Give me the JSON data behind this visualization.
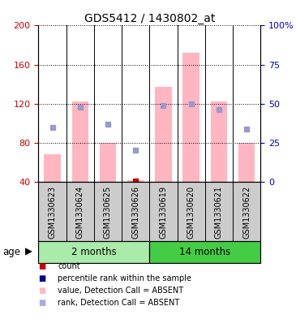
{
  "title": "GDS5412 / 1430802_at",
  "samples": [
    "GSM1330623",
    "GSM1330624",
    "GSM1330625",
    "GSM1330626",
    "GSM1330619",
    "GSM1330620",
    "GSM1330621",
    "GSM1330622"
  ],
  "groups": [
    {
      "label": "2 months",
      "indices": [
        0,
        1,
        2,
        3
      ],
      "color": "#AAEAAA"
    },
    {
      "label": "14 months",
      "indices": [
        4,
        5,
        6,
        7
      ],
      "color": "#44CC44"
    }
  ],
  "ylim_left": [
    40,
    200
  ],
  "ylim_right": [
    0,
    100
  ],
  "yticks_left": [
    40,
    80,
    120,
    160,
    200
  ],
  "yticks_right": [
    0,
    25,
    50,
    75,
    100
  ],
  "ytick_labels_left": [
    "40",
    "80",
    "120",
    "160",
    "200"
  ],
  "ytick_labels_right": [
    "0",
    "25",
    "50",
    "75",
    "100%"
  ],
  "bar_values": [
    68,
    122,
    80,
    42,
    137,
    172,
    122,
    80
  ],
  "rank_values": [
    35,
    48,
    37,
    20,
    49,
    50,
    46,
    34
  ],
  "bar_color": "#FFB6C1",
  "rank_square_color": "#9999CC",
  "count_color": "#CC0000",
  "count_values": [
    null,
    null,
    null,
    41,
    null,
    null,
    null,
    null
  ],
  "left_axis_color": "#CC0000",
  "right_axis_color": "#0000CC",
  "background_plot": "#FFFFFF",
  "sample_bg_color": "#CCCCCC",
  "age_label": "age",
  "legend_items": [
    {
      "label": "count",
      "color": "#CC0000"
    },
    {
      "label": "percentile rank within the sample",
      "color": "#00008B"
    },
    {
      "label": "value, Detection Call = ABSENT",
      "color": "#FFB6C1"
    },
    {
      "label": "rank, Detection Call = ABSENT",
      "color": "#AAAAEE"
    }
  ]
}
